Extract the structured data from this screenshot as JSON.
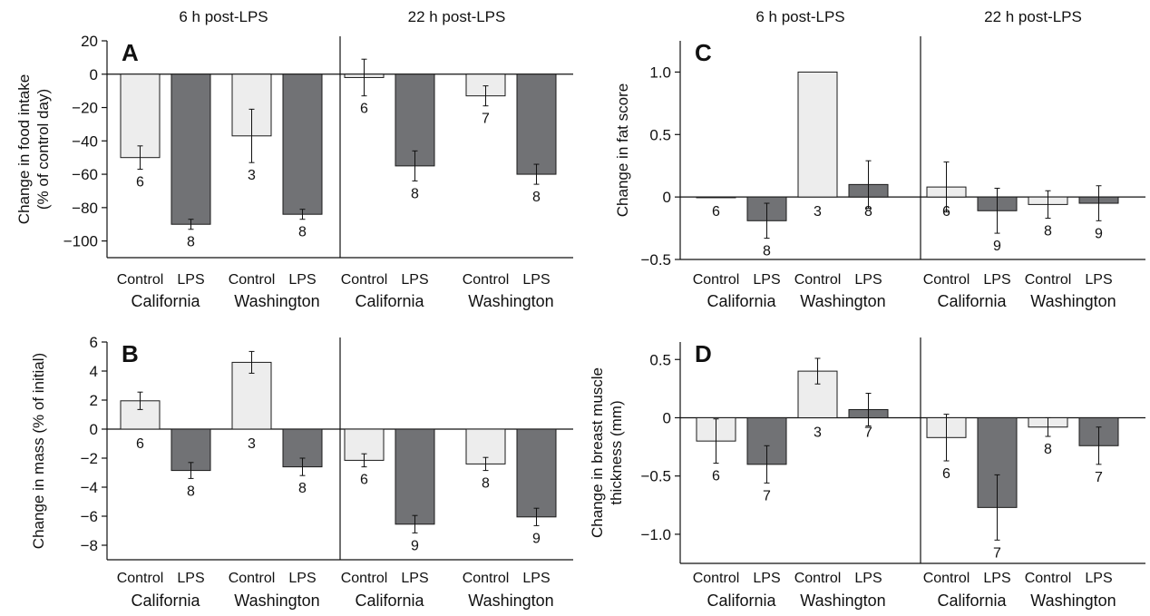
{
  "colors": {
    "control": "#ededed",
    "lps": "#717275",
    "stroke": "#1a1a1a"
  },
  "chart_data": [
    {
      "panel": "A",
      "type": "bar",
      "ylabel": [
        "Change in food intake",
        "(% of control day)"
      ],
      "ylim": [
        -110,
        20
      ],
      "yticks": [
        20,
        0,
        -20,
        -40,
        -60,
        -80,
        -100
      ],
      "ytick_labels": [
        "20",
        "0",
        "−20",
        "−40",
        "−60",
        "−80",
        "−100"
      ],
      "time_points": [
        "6 h post-LPS",
        "22 h post-LPS"
      ],
      "groups": [
        {
          "time": "6 h post-LPS",
          "population": "California",
          "condition": "Control",
          "value": -50,
          "error": 7,
          "n": "6"
        },
        {
          "time": "6 h post-LPS",
          "population": "California",
          "condition": "LPS",
          "value": -90,
          "error": 3,
          "n": "8"
        },
        {
          "time": "6 h post-LPS",
          "population": "Washington",
          "condition": "Control",
          "value": -37,
          "error": 16,
          "n": "3"
        },
        {
          "time": "6 h post-LPS",
          "population": "Washington",
          "condition": "LPS",
          "value": -84,
          "error": 3,
          "n": "8"
        },
        {
          "time": "22 h post-LPS",
          "population": "California",
          "condition": "Control",
          "value": -2,
          "error": 11,
          "n": "6"
        },
        {
          "time": "22 h post-LPS",
          "population": "California",
          "condition": "LPS",
          "value": -55,
          "error": 9,
          "n": "8"
        },
        {
          "time": "22 h post-LPS",
          "population": "Washington",
          "condition": "Control",
          "value": -13,
          "error": 6,
          "n": "7"
        },
        {
          "time": "22 h post-LPS",
          "population": "Washington",
          "condition": "LPS",
          "value": -60,
          "error": 6,
          "n": "8"
        }
      ]
    },
    {
      "panel": "B",
      "type": "bar",
      "ylabel": [
        "Change in mass (% of initial)"
      ],
      "ylim": [
        -9,
        6
      ],
      "yticks": [
        6,
        4,
        2,
        0,
        -2,
        -4,
        -6,
        -8
      ],
      "ytick_labels": [
        "6",
        "4",
        "2",
        "0",
        "−2",
        "−4",
        "−6",
        "−8"
      ],
      "time_points": [],
      "groups": [
        {
          "time": "6 h post-LPS",
          "population": "California",
          "condition": "Control",
          "value": 1.95,
          "error": 0.6,
          "n": "6"
        },
        {
          "time": "6 h post-LPS",
          "population": "California",
          "condition": "LPS",
          "value": -2.85,
          "error": 0.55,
          "n": "8"
        },
        {
          "time": "6 h post-LPS",
          "population": "Washington",
          "condition": "Control",
          "value": 4.6,
          "error": 0.75,
          "n": "3"
        },
        {
          "time": "6 h post-LPS",
          "population": "Washington",
          "condition": "LPS",
          "value": -2.6,
          "error": 0.6,
          "n": "8"
        },
        {
          "time": "22 h post-LPS",
          "population": "California",
          "condition": "Control",
          "value": -2.15,
          "error": 0.45,
          "n": "6"
        },
        {
          "time": "22 h post-LPS",
          "population": "California",
          "condition": "LPS",
          "value": -6.55,
          "error": 0.6,
          "n": "9"
        },
        {
          "time": "22 h post-LPS",
          "population": "Washington",
          "condition": "Control",
          "value": -2.4,
          "error": 0.45,
          "n": "8"
        },
        {
          "time": "22 h post-LPS",
          "population": "Washington",
          "condition": "LPS",
          "value": -6.05,
          "error": 0.6,
          "n": "9"
        }
      ]
    },
    {
      "panel": "C",
      "type": "bar",
      "ylabel": [
        "Change in fat score"
      ],
      "ylim": [
        -0.5,
        1.25
      ],
      "yticks": [
        1.0,
        0.5,
        0,
        -0.5
      ],
      "ytick_labels": [
        "1.0",
        "0.5",
        "0",
        "−0.5"
      ],
      "time_points": [
        "6 h post-LPS",
        "22 h post-LPS"
      ],
      "groups": [
        {
          "time": "6 h post-LPS",
          "population": "California",
          "condition": "Control",
          "value": 0,
          "error": 0,
          "n": "6"
        },
        {
          "time": "6 h post-LPS",
          "population": "California",
          "condition": "LPS",
          "value": -0.19,
          "error": 0.14,
          "n": "8"
        },
        {
          "time": "6 h post-LPS",
          "population": "Washington",
          "condition": "Control",
          "value": 1.0,
          "error": 0,
          "n": "3"
        },
        {
          "time": "6 h post-LPS",
          "population": "Washington",
          "condition": "LPS",
          "value": 0.1,
          "error": 0.19,
          "n": "8"
        },
        {
          "time": "22 h post-LPS",
          "population": "California",
          "condition": "Control",
          "value": 0.08,
          "error": 0.2,
          "n": "6"
        },
        {
          "time": "22 h post-LPS",
          "population": "California",
          "condition": "LPS",
          "value": -0.11,
          "error": 0.18,
          "n": "9"
        },
        {
          "time": "22 h post-LPS",
          "population": "Washington",
          "condition": "Control",
          "value": -0.06,
          "error": 0.11,
          "n": "8"
        },
        {
          "time": "22 h post-LPS",
          "population": "Washington",
          "condition": "LPS",
          "value": -0.05,
          "error": 0.14,
          "n": "9"
        }
      ]
    },
    {
      "panel": "D",
      "type": "bar",
      "ylabel": [
        "Change in breast muscle",
        "thickness (mm)"
      ],
      "ylim": [
        -1.25,
        0.65
      ],
      "yticks": [
        0.5,
        0,
        -0.5,
        -1.0
      ],
      "ytick_labels": [
        "0.5",
        "0",
        "−0.5",
        "−1.0"
      ],
      "time_points": [],
      "groups": [
        {
          "time": "6 h post-LPS",
          "population": "California",
          "condition": "Control",
          "value": -0.2,
          "error": 0.19,
          "n": "6"
        },
        {
          "time": "6 h post-LPS",
          "population": "California",
          "condition": "LPS",
          "value": -0.4,
          "error": 0.16,
          "n": "7"
        },
        {
          "time": "6 h post-LPS",
          "population": "Washington",
          "condition": "Control",
          "value": 0.4,
          "error": 0.11,
          "n": "3"
        },
        {
          "time": "6 h post-LPS",
          "population": "Washington",
          "condition": "LPS",
          "value": 0.07,
          "error": 0.14,
          "n": "7"
        },
        {
          "time": "22 h post-LPS",
          "population": "California",
          "condition": "Control",
          "value": -0.17,
          "error": 0.2,
          "n": "6"
        },
        {
          "time": "22 h post-LPS",
          "population": "California",
          "condition": "LPS",
          "value": -0.77,
          "error": 0.28,
          "n": "7"
        },
        {
          "time": "22 h post-LPS",
          "population": "Washington",
          "condition": "Control",
          "value": -0.08,
          "error": 0.08,
          "n": "8"
        },
        {
          "time": "22 h post-LPS",
          "population": "Washington",
          "condition": "LPS",
          "value": -0.24,
          "error": 0.16,
          "n": "7"
        }
      ]
    }
  ]
}
